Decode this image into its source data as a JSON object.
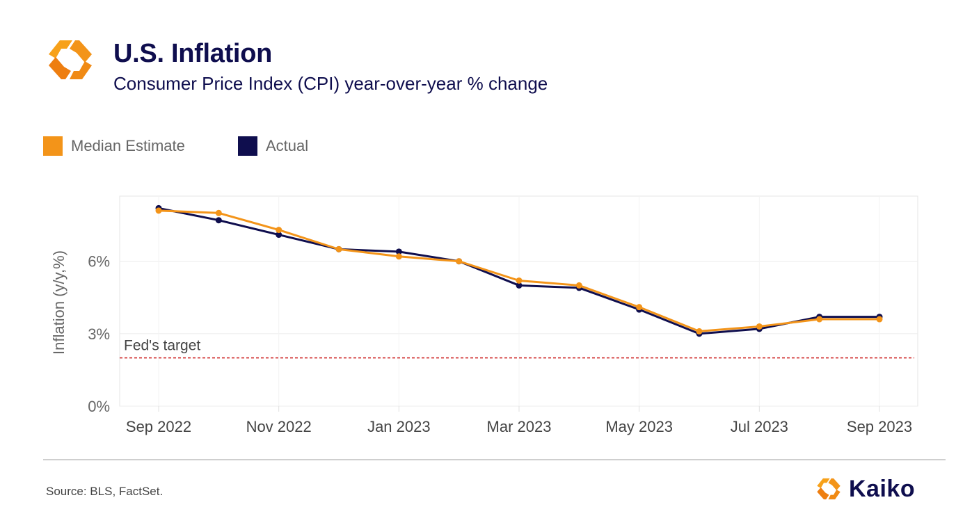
{
  "header": {
    "title": "U.S. Inflation",
    "subtitle": "Consumer Price Index (CPI) year-over-year % change"
  },
  "legend": [
    {
      "label": "Median Estimate",
      "color": "#f39419"
    },
    {
      "label": "Actual",
      "color": "#0f0e4e"
    }
  ],
  "chart_data": {
    "type": "line",
    "ylabel": "Inflation (y/y,%)",
    "xlabel": "",
    "x": [
      "Sep 2022",
      "Oct 2022",
      "Nov 2022",
      "Dec 2022",
      "Jan 2023",
      "Feb 2023",
      "Mar 2023",
      "Apr 2023",
      "May 2023",
      "Jun 2023",
      "Jul 2023",
      "Aug 2023",
      "Sep 2023"
    ],
    "x_tick_labels": [
      "Sep 2022",
      "Nov 2022",
      "Jan 2023",
      "Mar 2023",
      "May 2023",
      "Jul 2023",
      "Sep 2023"
    ],
    "y_ticks": [
      0,
      3,
      6
    ],
    "y_tick_labels": [
      "0%",
      "3%",
      "6%"
    ],
    "ylim": [
      0,
      8.7
    ],
    "grid": true,
    "legend_position": "top-left",
    "series": [
      {
        "name": "Actual",
        "color": "#0f0e4e",
        "values": [
          8.2,
          7.7,
          7.1,
          6.5,
          6.4,
          6.0,
          5.0,
          4.9,
          4.0,
          3.0,
          3.2,
          3.7,
          3.7
        ]
      },
      {
        "name": "Median Estimate",
        "color": "#f39419",
        "values": [
          8.1,
          8.0,
          7.3,
          6.5,
          6.2,
          6.0,
          5.2,
          5.0,
          4.1,
          3.1,
          3.3,
          3.6,
          3.6
        ]
      }
    ],
    "annotations": [
      {
        "label": "Fed's target",
        "y": 2.0,
        "color": "#cc1f1f"
      }
    ]
  },
  "footer": {
    "source": "Source: BLS, FactSet.",
    "brand": "Kaiko"
  },
  "colors": {
    "navy": "#0f0e4e",
    "orange": "#f39419",
    "target_line": "#cc1f1f"
  }
}
